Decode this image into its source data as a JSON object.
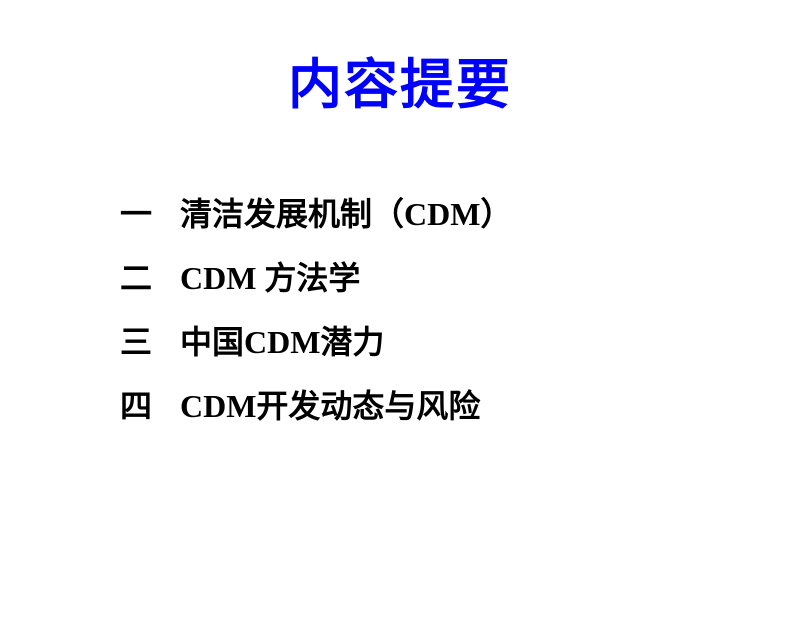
{
  "title": "内容提要",
  "title_color": "#0000ff",
  "title_fontsize": 54,
  "body_fontsize": 32,
  "body_color": "#000000",
  "background_color": "#ffffff",
  "items": [
    {
      "number": "一",
      "text": "清洁发展机制（CDM）"
    },
    {
      "number": "二",
      "text": "CDM 方法学"
    },
    {
      "number": "三",
      "text": "中国CDM潜力"
    },
    {
      "number": "四",
      "text": "CDM开发动态与风险"
    }
  ]
}
